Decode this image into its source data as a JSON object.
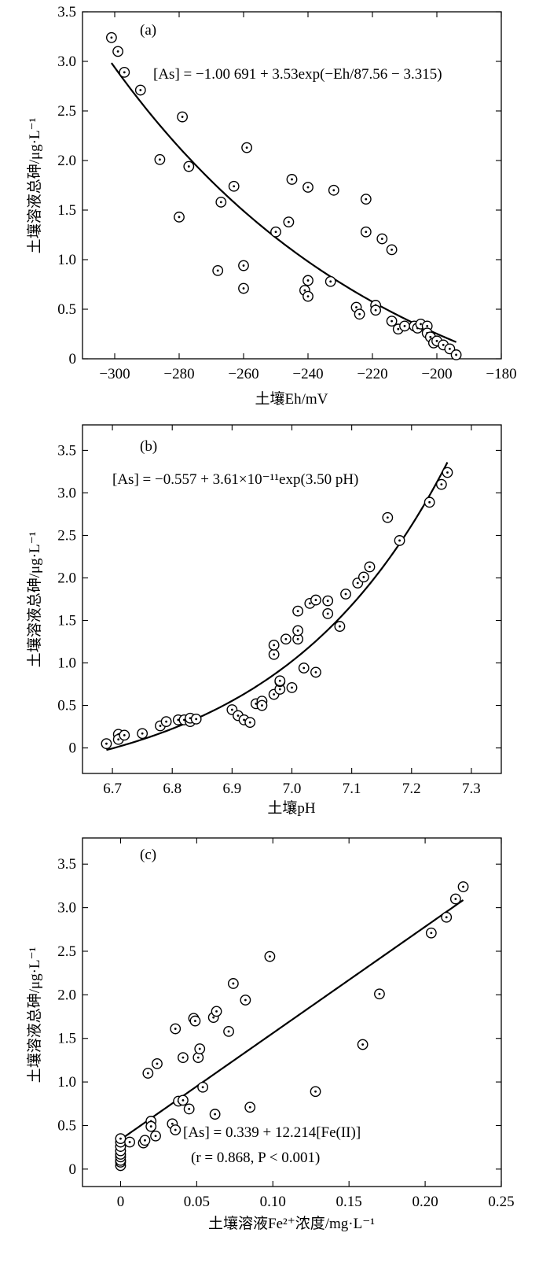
{
  "chart_data": [
    {
      "type": "scatter",
      "panel": "(a)",
      "equation": "[As] = −1.00 691 + 3.53exp(−Eh/87.56 − 3.315)",
      "equation_note": "",
      "xlabel": "土壤Eh/mV",
      "ylabel": "土壤溶液总砷/μg·L⁻¹",
      "xlim": [
        -310,
        -180
      ],
      "ylim": [
        0,
        3.5
      ],
      "x_ticks": [
        -300,
        -280,
        -260,
        -240,
        -220,
        -200,
        -180
      ],
      "y_ticks": [
        0,
        0.5,
        1.0,
        1.5,
        2.0,
        2.5,
        3.0,
        3.5
      ],
      "x_tick_labels": [
        "−300",
        "−280",
        "−260",
        "−240",
        "−220",
        "−200",
        "−180"
      ],
      "y_tick_labels": [
        "0",
        "0.5",
        "1.0",
        "1.5",
        "2.0",
        "2.5",
        "3.0",
        "3.5"
      ],
      "grid": false,
      "fit": {
        "kind": "exp",
        "a": -1.00691,
        "b": 3.53,
        "c": -0.01142074,
        "d": -3.315,
        "x_from": -301,
        "x_to": -194
      },
      "points": [
        [
          -301,
          3.24
        ],
        [
          -299,
          3.1
        ],
        [
          -297,
          2.89
        ],
        [
          -292,
          2.71
        ],
        [
          -286,
          2.01
        ],
        [
          -280,
          1.43
        ],
        [
          -279,
          2.44
        ],
        [
          -277,
          1.94
        ],
        [
          -268,
          0.89
        ],
        [
          -267,
          1.58
        ],
        [
          -263,
          1.74
        ],
        [
          -260,
          0.94
        ],
        [
          -260,
          0.71
        ],
        [
          -259,
          2.13
        ],
        [
          -250,
          1.28
        ],
        [
          -246,
          1.38
        ],
        [
          -245,
          1.81
        ],
        [
          -241,
          0.69
        ],
        [
          -240,
          0.63
        ],
        [
          -240,
          0.79
        ],
        [
          -240,
          1.73
        ],
        [
          -233,
          0.78
        ],
        [
          -232,
          1.7
        ],
        [
          -225,
          0.52
        ],
        [
          -224,
          0.45
        ],
        [
          -222,
          1.28
        ],
        [
          -222,
          1.61
        ],
        [
          -219,
          0.54
        ],
        [
          -219,
          0.49
        ],
        [
          -217,
          1.21
        ],
        [
          -214,
          1.1
        ],
        [
          -214,
          0.38
        ],
        [
          -212,
          0.3
        ],
        [
          -210,
          0.33
        ],
        [
          -207,
          0.33
        ],
        [
          -206,
          0.31
        ],
        [
          -205,
          0.35
        ],
        [
          -203,
          0.33
        ],
        [
          -203,
          0.26
        ],
        [
          -202,
          0.22
        ],
        [
          -201,
          0.16
        ],
        [
          -200,
          0.18
        ],
        [
          -198,
          0.14
        ],
        [
          -196,
          0.1
        ],
        [
          -194,
          0.04
        ]
      ]
    },
    {
      "type": "scatter",
      "panel": "(b)",
      "equation": "[As] = −0.557 + 3.61×10⁻¹¹exp(3.50 pH)",
      "equation_note": "",
      "xlabel": "土壤pH",
      "ylabel": "土壤溶液总砷/μg·L⁻¹",
      "xlim": [
        6.65,
        7.35
      ],
      "ylim": [
        -0.3,
        3.8
      ],
      "x_ticks": [
        6.7,
        6.8,
        6.9,
        7.0,
        7.1,
        7.2,
        7.3
      ],
      "y_ticks": [
        0,
        0.5,
        1.0,
        1.5,
        2.0,
        2.5,
        3.0,
        3.5
      ],
      "x_tick_labels": [
        "6.7",
        "6.8",
        "6.9",
        "7.0",
        "7.1",
        "7.2",
        "7.3"
      ],
      "y_tick_labels": [
        "0",
        "0.5",
        "1.0",
        "1.5",
        "2.0",
        "2.5",
        "3.0",
        "3.5"
      ],
      "grid": false,
      "fit": {
        "kind": "exp",
        "a": -0.557,
        "b": 3.61e-11,
        "c": 3.5,
        "d": 0,
        "x_from": 6.69,
        "x_to": 7.26
      },
      "points": [
        [
          6.69,
          0.05
        ],
        [
          6.71,
          0.16
        ],
        [
          6.71,
          0.1
        ],
        [
          6.72,
          0.15
        ],
        [
          6.75,
          0.17
        ],
        [
          6.78,
          0.26
        ],
        [
          6.79,
          0.31
        ],
        [
          6.81,
          0.33
        ],
        [
          6.82,
          0.33
        ],
        [
          6.83,
          0.31
        ],
        [
          6.83,
          0.35
        ],
        [
          6.84,
          0.34
        ],
        [
          6.9,
          0.45
        ],
        [
          6.91,
          0.38
        ],
        [
          6.92,
          0.33
        ],
        [
          6.93,
          0.3
        ],
        [
          6.94,
          0.52
        ],
        [
          6.95,
          0.55
        ],
        [
          6.95,
          0.5
        ],
        [
          6.97,
          0.63
        ],
        [
          6.97,
          1.1
        ],
        [
          6.97,
          1.21
        ],
        [
          6.98,
          0.69
        ],
        [
          6.98,
          0.78
        ],
        [
          6.98,
          0.79
        ],
        [
          6.99,
          1.28
        ],
        [
          7.0,
          0.71
        ],
        [
          7.01,
          1.28
        ],
        [
          7.01,
          1.38
        ],
        [
          7.01,
          1.61
        ],
        [
          7.02,
          0.94
        ],
        [
          7.03,
          1.7
        ],
        [
          7.04,
          1.74
        ],
        [
          7.04,
          0.89
        ],
        [
          7.06,
          1.58
        ],
        [
          7.06,
          1.73
        ],
        [
          7.08,
          1.43
        ],
        [
          7.09,
          1.81
        ],
        [
          7.11,
          1.94
        ],
        [
          7.12,
          2.01
        ],
        [
          7.13,
          2.13
        ],
        [
          7.16,
          2.71
        ],
        [
          7.18,
          2.44
        ],
        [
          7.23,
          2.89
        ],
        [
          7.25,
          3.1
        ],
        [
          7.26,
          3.24
        ]
      ]
    },
    {
      "type": "scatter",
      "panel": "(c)",
      "equation": "[As] = 0.339 + 12.214[Fe(II)]",
      "equation_note": "(r = 0.868, P < 0.001)",
      "xlabel": "土壤溶液Fe²⁺浓度/mg·L⁻¹",
      "ylabel": "土壤溶液总砷/μg·L⁻¹",
      "xlim": [
        -0.025,
        0.25
      ],
      "ylim": [
        -0.2,
        3.8
      ],
      "x_ticks": [
        0,
        0.05,
        0.1,
        0.15,
        0.2,
        0.25
      ],
      "y_ticks": [
        0,
        0.5,
        1.0,
        1.5,
        2.0,
        2.5,
        3.0,
        3.5
      ],
      "x_tick_labels": [
        "0",
        "0.05",
        "0.10",
        "0.15",
        "0.20",
        "0.25"
      ],
      "y_tick_labels": [
        "0",
        "0.5",
        "1.0",
        "1.5",
        "2.0",
        "2.5",
        "3.0",
        "3.5"
      ],
      "grid": false,
      "fit": {
        "kind": "linear",
        "a": 0.339,
        "b": 12.214,
        "x_from": 0,
        "x_to": 0.225
      },
      "points": [
        [
          0,
          0.04
        ],
        [
          0,
          0.08
        ],
        [
          0,
          0.1
        ],
        [
          0,
          0.14
        ],
        [
          0,
          0.17
        ],
        [
          0,
          0.21
        ],
        [
          0,
          0.26
        ],
        [
          0,
          0.31
        ],
        [
          0,
          0.35
        ],
        [
          0.006,
          0.31
        ],
        [
          0.015,
          0.3
        ],
        [
          0.016,
          0.33
        ],
        [
          0.018,
          1.1
        ],
        [
          0.02,
          0.55
        ],
        [
          0.02,
          0.49
        ],
        [
          0.023,
          0.38
        ],
        [
          0.024,
          1.21
        ],
        [
          0.034,
          0.52
        ],
        [
          0.036,
          0.45
        ],
        [
          0.036,
          1.61
        ],
        [
          0.038,
          0.78
        ],
        [
          0.041,
          0.79
        ],
        [
          0.041,
          1.28
        ],
        [
          0.045,
          0.69
        ],
        [
          0.048,
          1.73
        ],
        [
          0.049,
          1.7
        ],
        [
          0.051,
          1.28
        ],
        [
          0.052,
          1.38
        ],
        [
          0.054,
          0.94
        ],
        [
          0.061,
          1.74
        ],
        [
          0.062,
          0.63
        ],
        [
          0.063,
          1.81
        ],
        [
          0.071,
          1.58
        ],
        [
          0.074,
          2.13
        ],
        [
          0.082,
          1.94
        ],
        [
          0.085,
          0.71
        ],
        [
          0.098,
          2.44
        ],
        [
          0.128,
          0.89
        ],
        [
          0.159,
          1.43
        ],
        [
          0.17,
          2.01
        ],
        [
          0.204,
          2.71
        ],
        [
          0.214,
          2.89
        ],
        [
          0.22,
          3.1
        ],
        [
          0.225,
          3.24
        ]
      ]
    }
  ]
}
